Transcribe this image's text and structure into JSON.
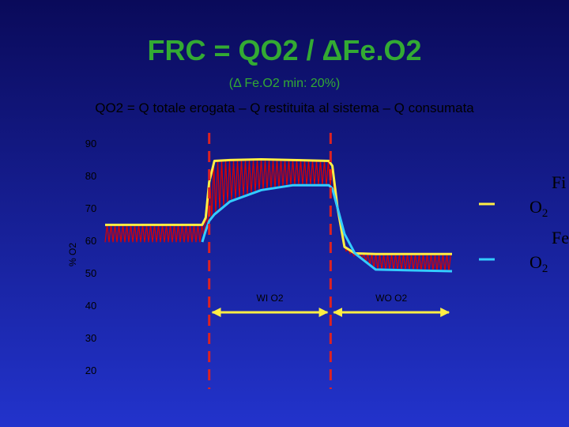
{
  "chart_data": {
    "type": "line",
    "title": "FRC = QO2 / ΔFe.O2",
    "subtitle": "(Δ Fe.O2 min: 20%)",
    "formula": "QO2 = Q totale erogata – Q restituita al sistema – Q consumata",
    "y_label": "% O2",
    "x": [
      0,
      28,
      29,
      30,
      31.5,
      36,
      45,
      54,
      64.5,
      65.5,
      67,
      69,
      72,
      78,
      100
    ],
    "xlim": [
      0,
      100
    ],
    "ylim": [
      20,
      90
    ],
    "yticks": [
      20,
      30,
      40,
      50,
      60,
      70,
      80,
      90
    ],
    "series": [
      {
        "name": "Fi O2",
        "color": "#ffee44",
        "values": [
          64.8,
          64.8,
          67,
          78,
          84.5,
          84.8,
          85,
          84.8,
          84.5,
          83,
          70,
          58,
          56,
          55.8,
          55.8
        ]
      },
      {
        "name": "Fe O2",
        "color": "#33ccff",
        "values": [
          null,
          59.5,
          63,
          66,
          68,
          72,
          75.5,
          77,
          77,
          76,
          70,
          62,
          56,
          51,
          50.5
        ]
      }
    ],
    "phases": [
      {
        "label": "WI O2",
        "x": [
          30,
          65
        ]
      },
      {
        "label": "WO O2",
        "x": [
          65,
          100
        ]
      }
    ]
  }
}
